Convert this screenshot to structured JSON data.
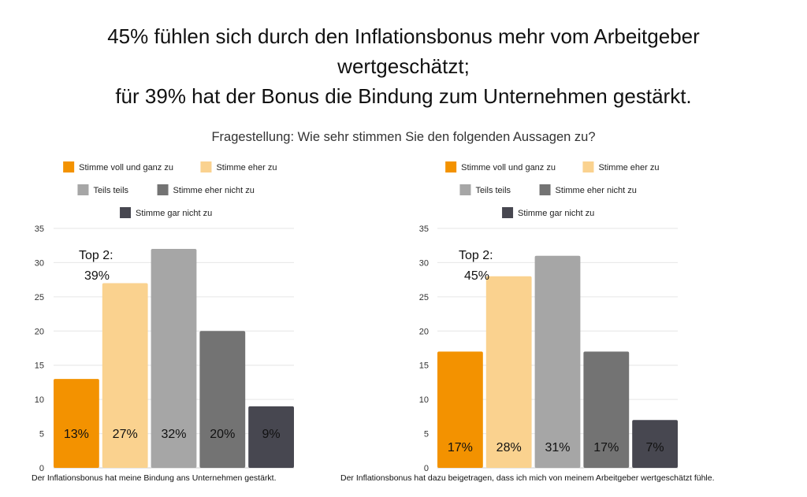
{
  "title_lines": [
    "45% fühlen sich durch den Inflationsbonus mehr vom Arbeitgeber",
    "wertgeschätzt;",
    "für 39% hat der Bonus die Bindung zum Unternehmen gestärkt."
  ],
  "subtitle": "Fragestellung: Wie sehr stimmen Sie den folgenden Aussagen zu?",
  "colors": [
    "#F39200",
    "#FAD28F",
    "#A6A6A6",
    "#737373",
    "#474750"
  ],
  "chart_data": [
    {
      "type": "bar",
      "categories": [
        "Stimme voll und ganz zu",
        "Stimme eher zu",
        "Teils teils",
        "Stimme eher nicht zu",
        "Stimme gar nicht zu"
      ],
      "values": [
        13,
        27,
        32,
        20,
        9
      ],
      "data_labels": [
        "13%",
        "27%",
        "32%",
        "20%",
        "9%"
      ],
      "xlabel": "Der Inflationsbonus hat meine Bindung ans Unternehmen gestärkt.",
      "ylim": [
        0,
        35
      ],
      "yticks": [
        "0",
        "5",
        "10",
        "15",
        "20",
        "25",
        "30",
        "35"
      ],
      "annotation": [
        "Top 2:",
        "39%"
      ],
      "legend": "top",
      "grid": true
    },
    {
      "type": "bar",
      "categories": [
        "Stimme voll und ganz zu",
        "Stimme eher zu",
        "Teils teils",
        "Stimme eher nicht zu",
        "Stimme gar nicht zu"
      ],
      "values": [
        17,
        28,
        31,
        17,
        7
      ],
      "data_labels": [
        "17%",
        "28%",
        "31%",
        "17%",
        "7%"
      ],
      "xlabel": "Der Inflationsbonus hat dazu beigetragen, dass ich mich von meinem Arbeitgeber wertgeschätzt fühle.",
      "ylim": [
        0,
        35
      ],
      "yticks": [
        "0",
        "5",
        "10",
        "15",
        "20",
        "25",
        "30",
        "35"
      ],
      "annotation": [
        "Top 2:",
        "45%"
      ],
      "legend": "top",
      "grid": true
    }
  ]
}
